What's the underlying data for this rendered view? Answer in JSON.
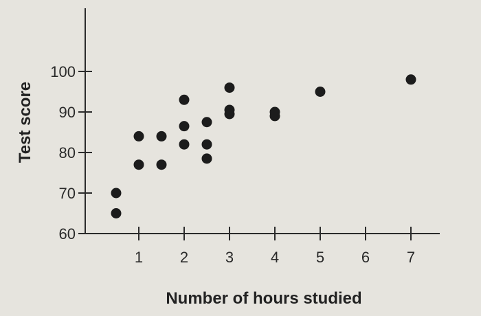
{
  "chart_data": {
    "type": "scatter",
    "title": "",
    "xlabel": "Number of hours studied",
    "ylabel": "Test score",
    "xlim": [
      0,
      7.6
    ],
    "ylim": [
      60,
      100
    ],
    "xticks": [
      1,
      2,
      3,
      4,
      5,
      6,
      7
    ],
    "yticks": [
      60,
      70,
      80,
      90,
      100
    ],
    "grid": false,
    "legend": "none",
    "marker_color": "#1c1c1c",
    "points": [
      {
        "x": 0.5,
        "y": 65
      },
      {
        "x": 0.5,
        "y": 70
      },
      {
        "x": 1,
        "y": 77
      },
      {
        "x": 1,
        "y": 84
      },
      {
        "x": 1.5,
        "y": 77
      },
      {
        "x": 1.5,
        "y": 84
      },
      {
        "x": 2,
        "y": 82
      },
      {
        "x": 2,
        "y": 86.5
      },
      {
        "x": 2,
        "y": 93
      },
      {
        "x": 2.5,
        "y": 78.5
      },
      {
        "x": 2.5,
        "y": 82
      },
      {
        "x": 2.5,
        "y": 87.5
      },
      {
        "x": 3,
        "y": 89.5
      },
      {
        "x": 3,
        "y": 90.5
      },
      {
        "x": 3,
        "y": 96
      },
      {
        "x": 4,
        "y": 89
      },
      {
        "x": 4,
        "y": 90
      },
      {
        "x": 5,
        "y": 95
      },
      {
        "x": 7,
        "y": 98
      }
    ]
  }
}
